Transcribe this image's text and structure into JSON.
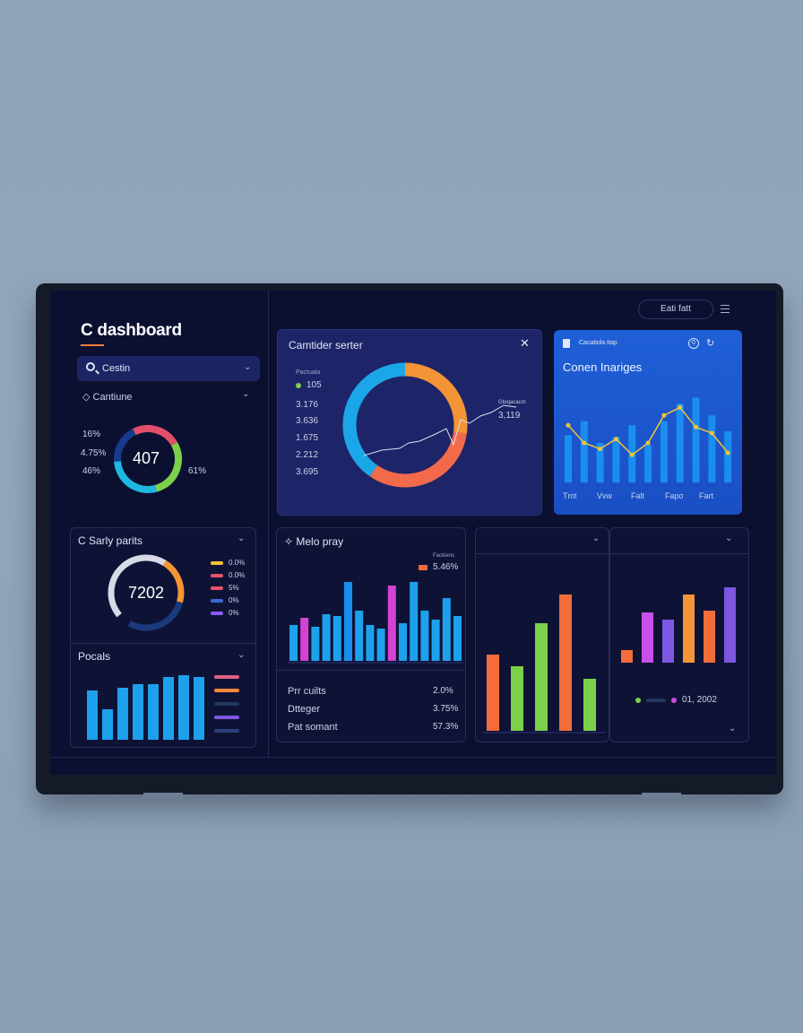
{
  "header": {
    "title": "C dashboard",
    "top_button": "Eati fatt"
  },
  "search": {
    "label": "Cestin"
  },
  "sidebar_section": {
    "label": "Cantiune"
  },
  "donut_small": {
    "center": "407",
    "left_labels": [
      "16%",
      "4.75%",
      "46%"
    ],
    "right_label": "61%",
    "colors": [
      "#7bd14a",
      "#1eb7e0",
      "#163a8c",
      "#e0506b"
    ]
  },
  "card_center": {
    "title": "Camtider serter",
    "legend_caption": "Pactuala",
    "values": [
      "105",
      "3.176",
      "3.636",
      "1.675",
      "2.212",
      "3.695"
    ],
    "annotation_caption": "Gtoqacacm",
    "annotation": "3,119",
    "colors": [
      "#f39436",
      "#f36a4b",
      "#1ba6e8"
    ]
  },
  "card_blue": {
    "header_caption": "Cacatiola ttap",
    "title": "Conen Inariges",
    "x_labels": [
      "Tmt",
      "Vvw",
      "Falt",
      "Fapo",
      "Fart"
    ],
    "bars": [
      48,
      62,
      40,
      46,
      58,
      38,
      62,
      80,
      86,
      68,
      52
    ],
    "line": [
      58,
      40,
      34,
      44,
      28,
      40,
      68,
      76,
      56,
      50,
      30
    ]
  },
  "card_sales": {
    "title": "C Sarly parits",
    "center": "7202",
    "legend": [
      {
        "label": "0.0%",
        "color": "#f2c335"
      },
      {
        "label": "0.0%",
        "color": "#e5536d"
      },
      {
        "label": "5%",
        "color": "#e5536d"
      },
      {
        "label": "0%",
        "color": "#3e66d8"
      },
      {
        "label": "0%",
        "color": "#8b5cf6"
      }
    ]
  },
  "card_pocals": {
    "title": "Pocals",
    "bars": [
      55,
      34,
      58,
      62,
      62,
      70,
      72,
      70
    ],
    "legend_colors": [
      "#e05f86",
      "#f0873b",
      "#22365f",
      "#7e57e0",
      "#2c3f7a"
    ]
  },
  "card_melo": {
    "title": "Melo pray",
    "caption": "Fackiens",
    "annotation": "5.46%",
    "bars": [
      40,
      48,
      38,
      52,
      50,
      88,
      56,
      40,
      36,
      84,
      42,
      88,
      56,
      46,
      70,
      50
    ],
    "bar_colors": [
      "#1ea1ec",
      "#d542d3",
      "#1ea1ec",
      "#1ea1ec",
      "#1ea1ec",
      "#1a8ef0",
      "#1ea1ec",
      "#1ea1ec",
      "#1ea1ec",
      "#d542d3",
      "#1ea1ec",
      "#1ea1ec",
      "#1ea1ec",
      "#1ea1ec",
      "#1ea1ec",
      "#1ea1ec"
    ],
    "rows": [
      {
        "label": "Prr cuilts",
        "value": "2.0%"
      },
      {
        "label": "Dtteger",
        "value": "3.75%"
      },
      {
        "label": "Pat somant",
        "value": "57.3%"
      }
    ]
  },
  "card_bars_a": {
    "bars": [
      {
        "value": 85,
        "color": "#f36c3a"
      },
      {
        "value": 72,
        "color": "#7bd14a"
      },
      {
        "value": 120,
        "color": "#7bd14a"
      },
      {
        "value": 152,
        "color": "#f36c3a"
      },
      {
        "value": 58,
        "color": "#7bd14a"
      }
    ]
  },
  "card_bars_b": {
    "bars": [
      {
        "value": 14,
        "color": "#f36c3a"
      },
      {
        "value": 56,
        "color": "#c84fe8"
      },
      {
        "value": 48,
        "color": "#7e57e0"
      },
      {
        "value": 76,
        "color": "#f39436"
      },
      {
        "value": 58,
        "color": "#f36c3a"
      },
      {
        "value": 84,
        "color": "#7e57e0"
      }
    ],
    "legend_text": "01, 2002"
  }
}
